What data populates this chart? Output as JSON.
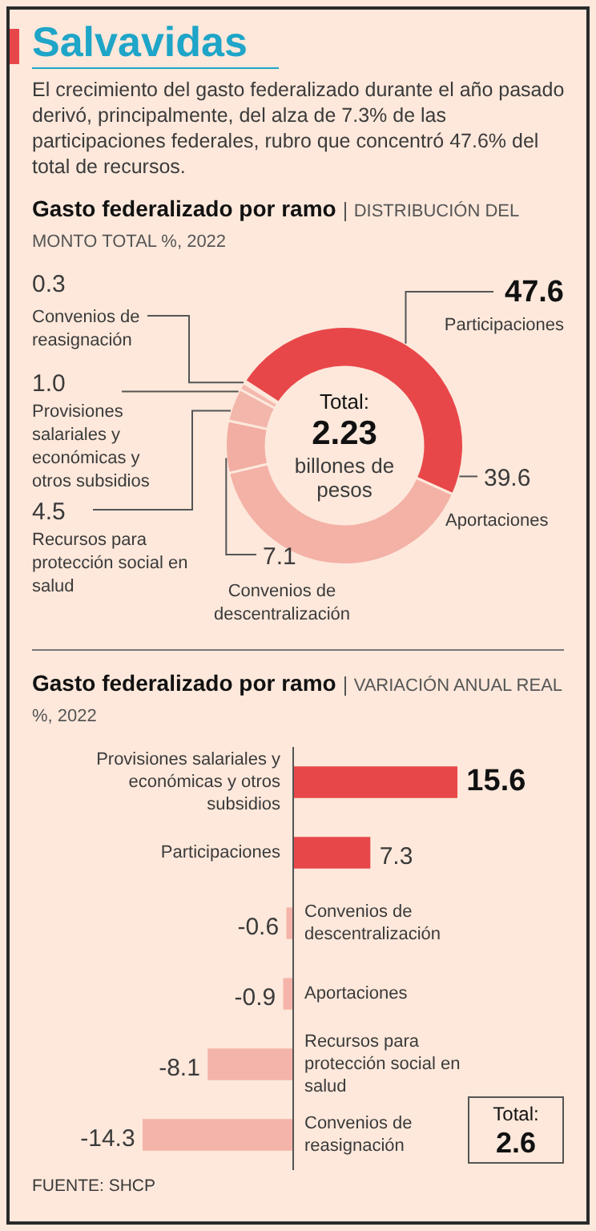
{
  "chart_data": [
    {
      "type": "other",
      "title": "Salvavidas",
      "subtitle": "El crecimiento del gasto federalizado durante el año pasado derivó, principalmente, del alza de 7.3% de las participaciones federales, rubro que concentró 47.6% del total de recursos."
    },
    {
      "type": "donut",
      "title": "Gasto federalizado por ramo",
      "subtitle": "DISTRIBUCIÓN DEL MONTO TOTAL %, 2022",
      "categories": [
        "Participaciones",
        "Aportaciones",
        "Convenios de descentralización",
        "Recursos para protección social en salud",
        "Provisiones salariales y económicas y otros subsidios",
        "Convenios de reasignación"
      ],
      "values": [
        47.6,
        39.6,
        7.1,
        4.5,
        1.0,
        0.3
      ],
      "colors": [
        "#e8474a",
        "#f4b1a6",
        "#f2aea3",
        "#f3b6ab",
        "#f4b9ae",
        "#f2b3a8"
      ],
      "value_labels": [
        "47.6",
        "39.6",
        "7.1",
        "4.5",
        "1.0",
        "0.3"
      ],
      "annotations": [
        "Total:",
        "2.23",
        "billones de pesos"
      ]
    },
    {
      "type": "bar",
      "orientation": "horizontal",
      "title": "Gasto federalizado por ramo",
      "subtitle": "VARIACIÓN ANUAL REAL %, 2022",
      "categories": [
        "Provisiones salariales y económicas y otros subsidios",
        "Participaciones",
        "Convenios de descentralización",
        "Aportaciones",
        "Recursos para protección social en salud",
        "Convenios de reasignación"
      ],
      "values": [
        15.6,
        7.3,
        -0.6,
        -0.9,
        -8.1,
        -14.3
      ],
      "colors": [
        "#e8474a",
        "#e8474a",
        "#f5b4a9",
        "#f5b4a9",
        "#f5b4a9",
        "#f5b4a9"
      ],
      "tick_labels": false,
      "data_labels": true,
      "annotations": [
        "Total:",
        "2.6",
        "FUENTE: SHCP"
      ]
    }
  ]
}
